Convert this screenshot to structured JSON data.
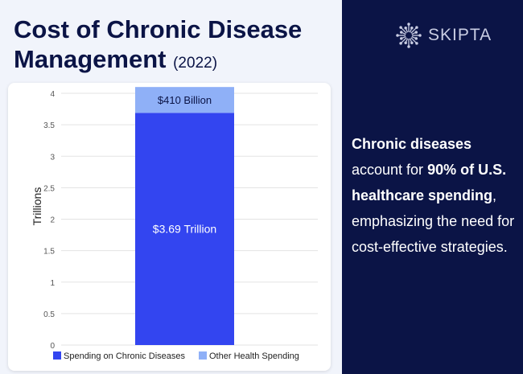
{
  "header": {
    "title": "Cost of Chronic Disease Management",
    "year": "(2022)"
  },
  "brand": {
    "name": "SKIPTA",
    "icon": "starburst-icon"
  },
  "description": {
    "part1": "Chronic diseases",
    "part2": " account for ",
    "part3": "90% of U.S. healthcare spending",
    "part4": ", emphasizing the need for cost-effective strategies."
  },
  "colors": {
    "navy": "#0b1446",
    "chronic": "#3345f0",
    "other": "#8fb0f7"
  },
  "chart_data": {
    "type": "bar",
    "stacked": true,
    "title": "",
    "xlabel": "",
    "ylabel": "Trillions",
    "ylim": [
      0,
      4
    ],
    "yticks": [
      0,
      0.5,
      1,
      1.5,
      2,
      2.5,
      3,
      3.5,
      4
    ],
    "yticklabels": [
      "0",
      "0.5",
      "1",
      "1.5",
      "2",
      "2.5",
      "3",
      "3.5",
      "4"
    ],
    "categories": [
      ""
    ],
    "series": [
      {
        "name": "Spending on Chronic Diseases",
        "values": [
          3.69
        ],
        "label": "$3.69 Trillion",
        "color": "#3345f0"
      },
      {
        "name": "Other Health Spending",
        "values": [
          0.41
        ],
        "label": "$410 Billion",
        "color": "#8fb0f7"
      }
    ],
    "legend": "bottom",
    "grid": true
  }
}
